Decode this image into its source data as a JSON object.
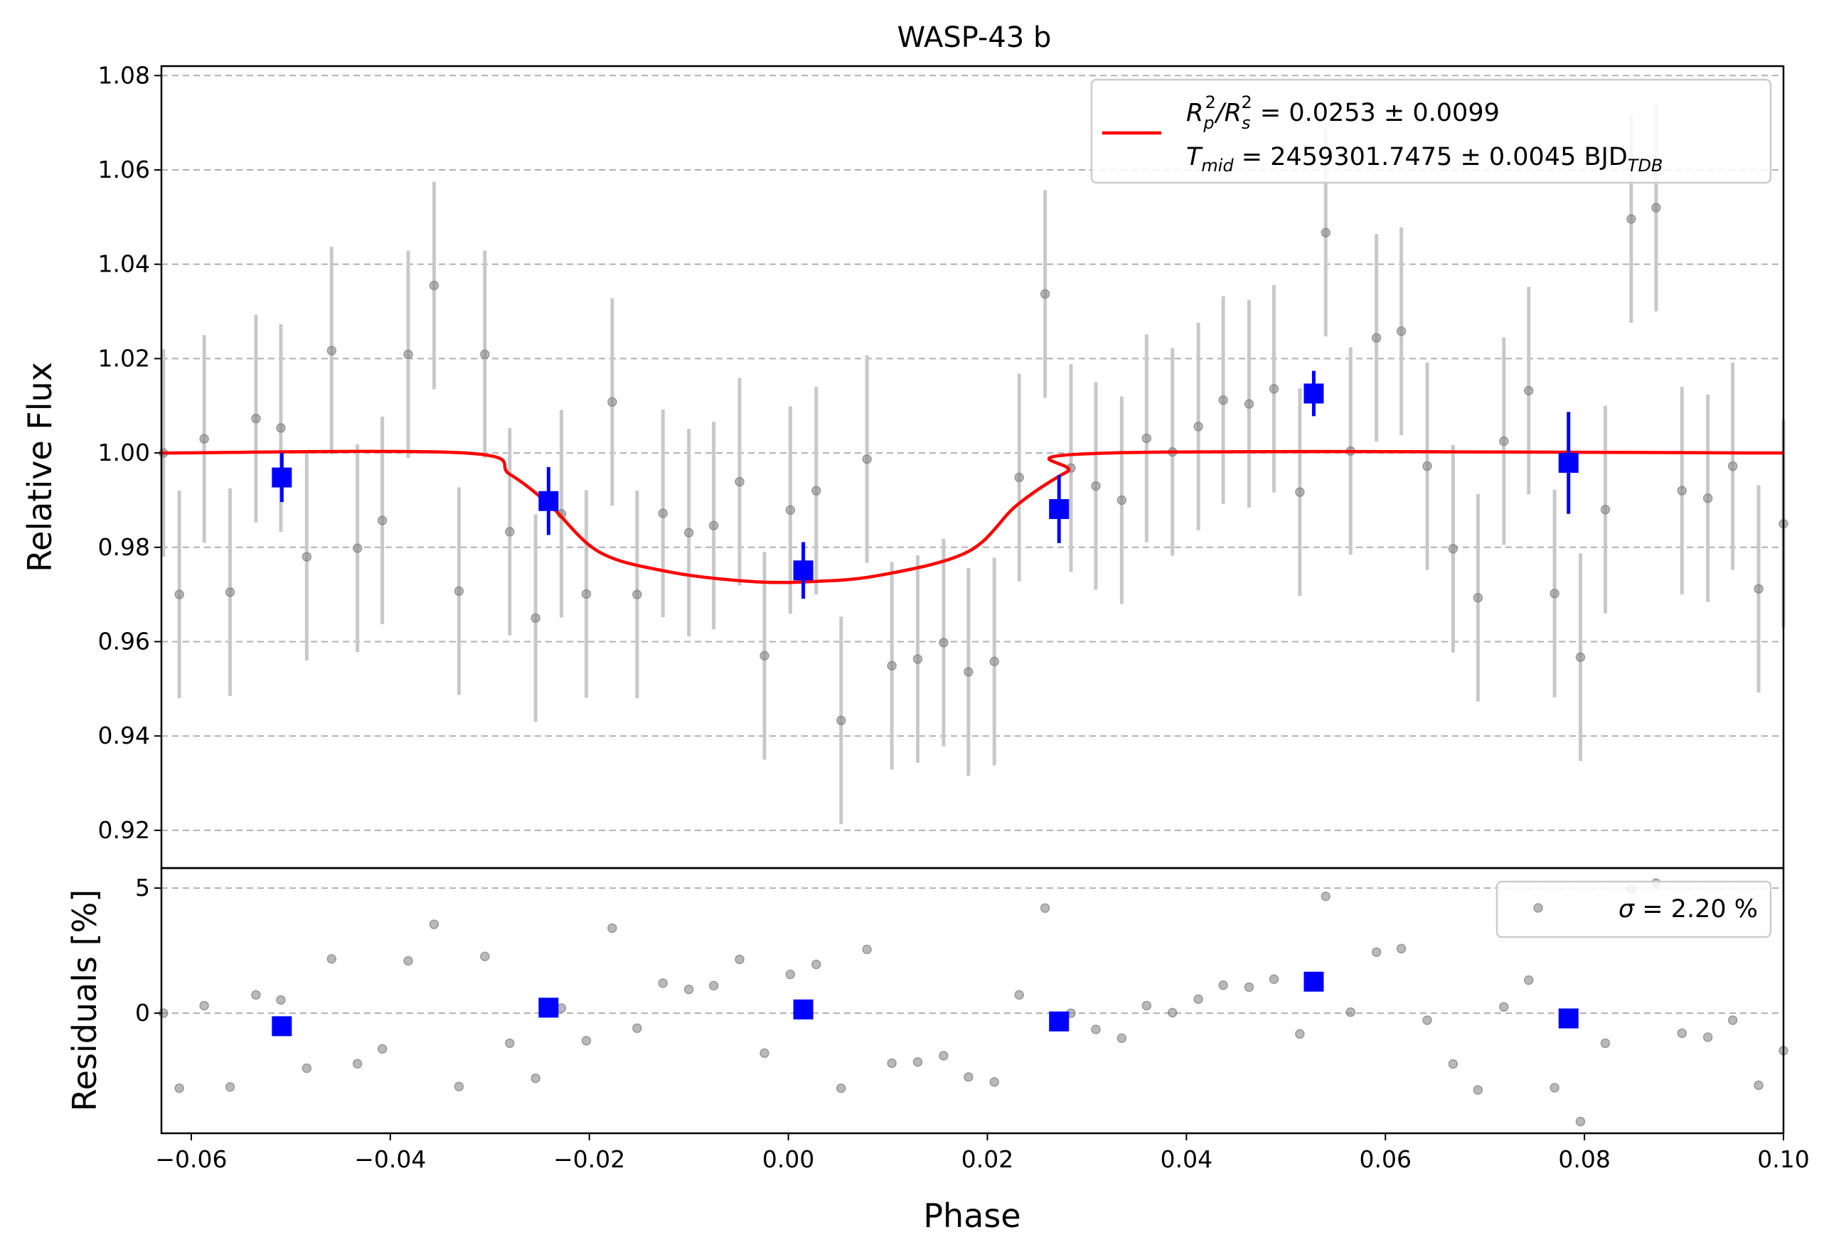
{
  "chart_data": [
    {
      "panel": "main",
      "type": "scatter",
      "title": "WASP-43 b",
      "xlabel": "Phase",
      "ylabel": "Relative Flux",
      "xlim": [
        -0.063,
        0.1
      ],
      "ylim": [
        0.912,
        1.082
      ],
      "xticks": [
        "−0.06",
        "−0.04",
        "−0.02",
        "0.00",
        "0.02",
        "0.04",
        "0.06",
        "0.08",
        "0.10"
      ],
      "xtick_values": [
        -0.06,
        -0.04,
        -0.02,
        0.0,
        0.02,
        0.04,
        0.06,
        0.08,
        0.1
      ],
      "yticks": [
        "0.92",
        "0.94",
        "0.96",
        "0.98",
        "1.00",
        "1.02",
        "1.04",
        "1.06",
        "1.08"
      ],
      "ytick_values": [
        0.92,
        0.94,
        0.96,
        0.98,
        1.0,
        1.02,
        1.04,
        1.06,
        1.08
      ],
      "grid": "horizontal dashed",
      "legend_position": "top-right",
      "legend": {
        "line1_prefix": "R",
        "line1_sub1": "p",
        "line1_sup1": "2",
        "line1_slash": "/R",
        "line1_sub2": "s",
        "line1_sup2": "2",
        "line1_value": " = 0.0253 ± 0.0099",
        "line2_prefix": "T",
        "line2_sub": "mid",
        "line2_value": " = 2459301.7475 ± 0.0045 BJD",
        "line2_unit_sub": "TDB"
      },
      "colors": {
        "model": "#ff0000",
        "binned": "#0000ff",
        "raw": "#808080",
        "raw_err": "#c8c8c8"
      },
      "series": [
        {
          "style": "raw",
          "x": [
            -0.0628,
            -0.0612,
            -0.0587,
            -0.0561,
            -0.0535,
            -0.051,
            -0.0484,
            -0.0459,
            -0.0433,
            -0.0408,
            -0.0382,
            -0.0356,
            -0.0331,
            -0.0305,
            -0.028,
            -0.0254,
            -0.0228,
            -0.0203,
            -0.0177,
            -0.0152,
            -0.0126,
            -0.01,
            -0.0075,
            -0.0049,
            -0.0024,
            0.0002,
            0.0028,
            0.0053,
            0.0079,
            0.0104,
            0.013,
            0.0156,
            0.0181,
            0.0207,
            0.0232,
            0.0258,
            0.0284,
            0.0309,
            0.0335,
            0.036,
            0.0386,
            0.0412,
            0.0437,
            0.0463,
            0.0488,
            0.0514,
            0.054,
            0.0565,
            0.0591,
            0.0616,
            0.0642,
            0.0668,
            0.0693,
            0.0719,
            0.0744,
            0.077,
            0.0796,
            0.0821,
            0.0847,
            0.0872,
            0.0898,
            0.0924,
            0.0949,
            0.0975,
            0.1
          ],
          "y": [
            1.0,
            0.97,
            1.003,
            0.9705,
            1.0073,
            1.0053,
            0.978,
            1.0217,
            0.9798,
            0.9857,
            1.0209,
            1.0355,
            0.9707,
            1.0209,
            0.9833,
            0.965,
            0.9871,
            0.9701,
            1.0108,
            0.97,
            0.9872,
            0.9831,
            0.9846,
            0.9939,
            0.957,
            0.9879,
            0.992,
            0.9433,
            0.9987,
            0.9549,
            0.9563,
            0.9598,
            0.9536,
            0.9558,
            0.9948,
            1.0337,
            0.9968,
            0.993,
            0.99,
            1.0031,
            1.0002,
            1.0056,
            1.0112,
            1.0104,
            1.0136,
            0.9917,
            1.0467,
            1.0004,
            1.0244,
            1.0258,
            0.9972,
            0.9797,
            0.9693,
            1.0025,
            1.0132,
            0.9702,
            0.9567,
            0.988,
            1.0496,
            1.052,
            0.992,
            0.9904,
            0.9972,
            0.9712,
            0.985
          ],
          "err": 0.022
        },
        {
          "style": "binned",
          "x": [
            -0.0509,
            -0.0241,
            0.0015,
            0.0272,
            0.0528,
            0.0784
          ],
          "y": [
            0.9948,
            0.9898,
            0.9751,
            0.9881,
            1.0126,
            0.9979
          ],
          "err": [
            0.0052,
            0.0072,
            0.006,
            0.0072,
            0.0048,
            0.0108
          ]
        },
        {
          "style": "model",
          "x": [
            -0.063,
            -0.0325,
            -0.028,
            -0.024,
            -0.019,
            -0.012,
            -0.004,
            0.002,
            0.009,
            0.018,
            0.023,
            0.028,
            0.0325,
            0.1
          ],
          "y": [
            1.0,
            1.0,
            0.9955,
            0.989,
            0.979,
            0.9748,
            0.9728,
            0.9727,
            0.974,
            0.979,
            0.989,
            0.996,
            1.0,
            1.0
          ]
        }
      ]
    },
    {
      "panel": "residuals",
      "type": "scatter",
      "xlabel": "Phase",
      "ylabel": "Residuals [%]",
      "xlim": [
        -0.063,
        0.1
      ],
      "ylim": [
        -4.8,
        5.8
      ],
      "yticks": [
        "5",
        "0"
      ],
      "ytick_values": [
        5,
        0
      ],
      "grid": "horizontal dashed",
      "legend_position": "top-right",
      "legend": {
        "sigma_symbol": "σ",
        "sigma_text": " = 2.20 %"
      },
      "series": [
        {
          "style": "raw",
          "x": [
            -0.0628,
            -0.0612,
            -0.0587,
            -0.0561,
            -0.0535,
            -0.051,
            -0.0484,
            -0.0459,
            -0.0433,
            -0.0408,
            -0.0382,
            -0.0356,
            -0.0331,
            -0.0305,
            -0.028,
            -0.0254,
            -0.0228,
            -0.0203,
            -0.0177,
            -0.0152,
            -0.0126,
            -0.01,
            -0.0075,
            -0.0049,
            -0.0024,
            0.0002,
            0.0028,
            0.0053,
            0.0079,
            0.0104,
            0.013,
            0.0156,
            0.0181,
            0.0207,
            0.0232,
            0.0258,
            0.0284,
            0.0309,
            0.0335,
            0.036,
            0.0386,
            0.0412,
            0.0437,
            0.0463,
            0.0488,
            0.0514,
            0.054,
            0.0565,
            0.0591,
            0.0616,
            0.0642,
            0.0668,
            0.0693,
            0.0719,
            0.0744,
            0.077,
            0.0796,
            0.0821,
            0.0847,
            0.0872,
            0.0898,
            0.0924,
            0.0949,
            0.0975,
            0.1
          ],
          "y": [
            0.0,
            -3.0,
            0.3,
            -2.95,
            0.73,
            0.53,
            -2.2,
            2.17,
            -2.02,
            -1.43,
            2.09,
            3.55,
            -2.93,
            2.27,
            -1.2,
            -2.6,
            0.2,
            -1.1,
            3.4,
            -0.6,
            1.2,
            0.95,
            1.1,
            2.15,
            -1.6,
            1.55,
            1.95,
            -3.0,
            2.55,
            -2.0,
            -1.95,
            -1.7,
            -2.55,
            -2.75,
            0.73,
            4.2,
            0.0,
            -0.65,
            -1.0,
            0.3,
            0.02,
            0.56,
            1.12,
            1.04,
            1.36,
            -0.83,
            4.67,
            0.04,
            2.44,
            2.58,
            -0.28,
            -2.03,
            -3.07,
            0.25,
            1.32,
            -2.98,
            -4.33,
            -1.2,
            4.96,
            5.2,
            -0.8,
            -0.96,
            -0.28,
            -2.88,
            -1.5
          ]
        },
        {
          "style": "binned",
          "x": [
            -0.0509,
            -0.0241,
            0.0015,
            0.0272,
            0.0528,
            0.0784
          ],
          "y": [
            -0.52,
            0.22,
            0.15,
            -0.33,
            1.26,
            -0.21
          ]
        }
      ]
    }
  ]
}
